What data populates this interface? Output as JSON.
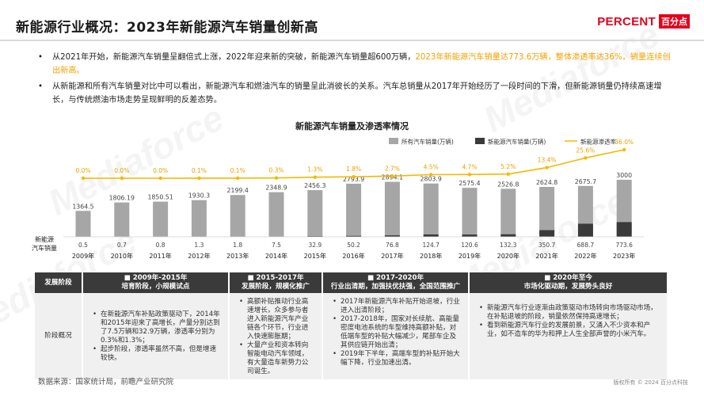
{
  "header": {
    "title": "新能源行业概况：2023年新能源汽车销量创新高",
    "logo_en": "PERCENT",
    "logo_cn": "百分点",
    "watermark": "Mediaforce"
  },
  "bullets": [
    {
      "normal": "从2021年开始，新能源汽车销量呈翻倍式上涨，2022年迎来新的突破，新能源汽车销量超600万辆，",
      "highlight": "2023年新能源汽车销量达773.6万辆，整体渗透率达36%，销量连续创出新高。"
    },
    {
      "normal": "从新能源和所有汽车销量对比中可以看出，新能源汽车和燃油汽车的销量呈此消彼长的关系。汽车总销量从2017年开始经历了一段时间的下滑，但新能源销量仍持续高速增长，与传统燃油市场走势呈现鲜明的反差态势。",
      "highlight": ""
    }
  ],
  "chart_data": {
    "type": "bar",
    "title": "新能源汽车销量及渗透率情况",
    "categories": [
      "2009年",
      "2010年",
      "2011年",
      "2012年",
      "2013年",
      "2014年",
      "2015年",
      "2016年",
      "2017年",
      "2018年",
      "2019年",
      "2020年",
      "2021年",
      "2022年",
      "2023年"
    ],
    "series": [
      {
        "name": "所有汽车销量(万辆)",
        "color": "#a6a6a6",
        "values": [
          1364.5,
          1806.19,
          1850.51,
          1930.3,
          2199.4,
          2348.9,
          2456.3,
          2793.9,
          2894.1,
          2803.9,
          2575.4,
          2526.8,
          2624.8,
          2675.7,
          3000
        ],
        "labels": [
          "1364.5",
          "1806.19",
          "1850.51",
          "1930.3",
          "2199.4",
          "2348.9",
          "2456.3",
          "2793.9",
          "2894.1",
          "2803.9",
          "2575.4",
          "2526.8",
          "2624.8",
          "2675.7",
          "3000"
        ]
      },
      {
        "name": "新能源汽车销量(万辆)",
        "color": "#3a3a3a",
        "values": [
          0.5,
          0.7,
          0.8,
          1.3,
          1.8,
          7.5,
          32.9,
          50.2,
          76.8,
          124.7,
          120.6,
          132.3,
          350.7,
          688.7,
          773.6
        ],
        "labels": [
          "0.5",
          "0.7",
          "0.8",
          "1.3",
          "1.8",
          "7.5",
          "32.9",
          "50.2",
          "76.8",
          "124.7",
          "120.6",
          "132.3",
          "350.7",
          "688.7",
          "773.6"
        ]
      },
      {
        "name": "新能源渗透率",
        "color": "#f5b800",
        "type": "line",
        "values": [
          0.0,
          0.0,
          0.0,
          0.1,
          0.1,
          0.3,
          1.3,
          1.8,
          2.7,
          4.5,
          4.7,
          5.2,
          13.4,
          25.6,
          36.0
        ],
        "labels": [
          "0.0%",
          "0.0%",
          "0.0%",
          "0.1%",
          "0.1%",
          "0.3%",
          "1.3%",
          "1.8%",
          "2.7%",
          "4.5%",
          "4.7%",
          "5.2%",
          "13.4%",
          "25.6%",
          "36.0%"
        ]
      }
    ],
    "row_label": "新能源\n汽车销量",
    "legend_position": "top-right",
    "grid": false
  },
  "table": {
    "corner_header": "发展阶段",
    "row_label": "阶段概况",
    "phases": [
      {
        "period": "■  2009年-2015年",
        "subtitle": "培育阶段，小规模试点",
        "items": [
          "在新能源汽车补贴政策驱动下，2014年和2015年迎来了高增长，产量分别达到了7.5万辆和32.9万辆，渗透率分别为0.3%和1.3%；",
          "起步阶段，渗透率虽然不高，但是增速较快。"
        ]
      },
      {
        "period": "■  2015-2017年",
        "subtitle": "发展阶段，规模化推广",
        "items": [
          "高额补贴推动行业高速增长，众多参与者进入新能源汽车产业链各个环节，行业进入快速膨胀期；",
          "大量产业和资本转向智能电动汽车领域，有大量造车新势力公司诞生。"
        ]
      },
      {
        "period": "■  2017-2020年",
        "subtitle": "行业出清期，加强扶优扶强，全国范围推广",
        "items": [
          "2017年新能源汽车补贴开始退坡，行业进入出清阶段；",
          "2017-2018年，国家对长续航、高能量密度电池系统的车型维持高额补贴，对低端车型的补贴大幅减少，尾部车企及其供应链开始出清；",
          "2019年下半年，高端车型的补贴开始大幅下降，行业加速出清。"
        ]
      },
      {
        "period": "■  2020年至今",
        "subtitle": "市场化驱动期，发展势头良好",
        "items": [
          "新能源汽车行业逐渐由政策驱动市场转向市场驱动市场，在补贴退坡的阶段，销量依然保持高速增长；",
          "看到新能源汽车行业的发展前景，又涌入不少资本和产业，如不造车的华为和押上人生全部声誉的小米汽车。"
        ]
      }
    ]
  },
  "footer": {
    "source": "数据来源：国家统计局，前瞻产业研究院",
    "copyright": "版权所有 © 2024 百分点科技"
  }
}
